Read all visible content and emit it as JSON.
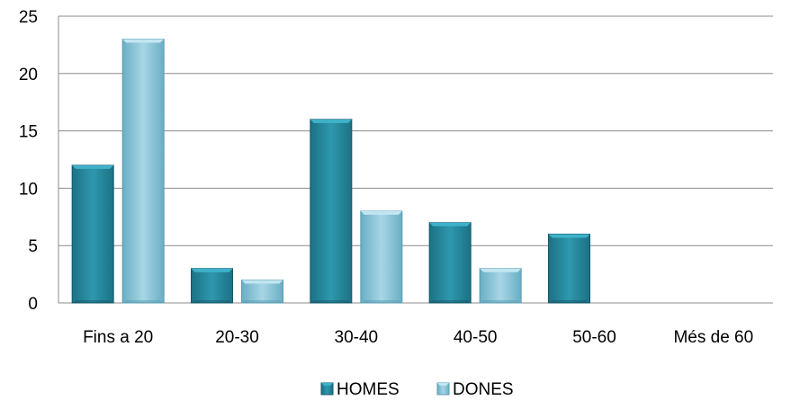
{
  "chart_data": {
    "type": "bar",
    "title": "",
    "xlabel": "",
    "ylabel": "",
    "categories": [
      "Fins a 20",
      "20-30",
      "30-40",
      "40-50",
      "50-60",
      "Més de 60"
    ],
    "series": [
      {
        "name": "HOMES",
        "values": [
          12,
          3,
          16,
          7,
          6,
          0
        ],
        "color": "#2a8fa6"
      },
      {
        "name": "DONES",
        "values": [
          23,
          2,
          8,
          3,
          0,
          0
        ],
        "color": "#8fc8db"
      }
    ],
    "ylim": [
      0,
      25
    ],
    "yticks": [
      0,
      5,
      10,
      15,
      20,
      25
    ],
    "grid": true,
    "legend_position": "bottom",
    "style": "3d-bevel"
  }
}
